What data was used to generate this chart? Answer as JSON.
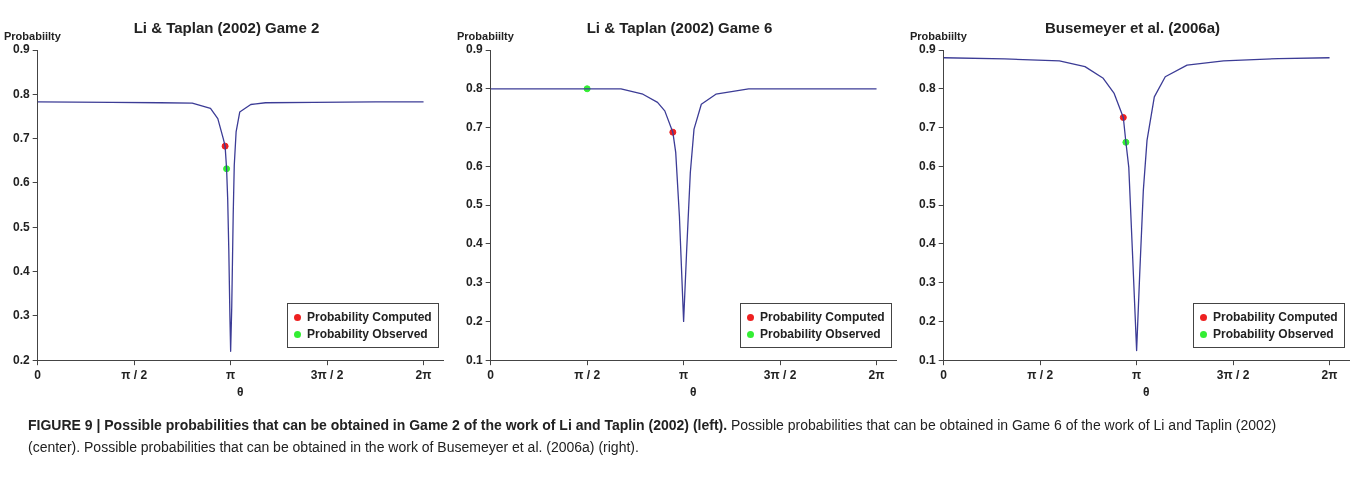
{
  "chart_data": [
    {
      "type": "line",
      "title": "Li & Taplan (2002) Game 2",
      "xlabel": "θ",
      "ylabel": "Probabiilty",
      "xlim": [
        0,
        6.6
      ],
      "ylim": [
        0.2,
        0.9
      ],
      "xticks": [
        {
          "value": 0,
          "label": "0"
        },
        {
          "value": 1.5708,
          "label": "π / 2"
        },
        {
          "value": 3.1416,
          "label": "π"
        },
        {
          "value": 4.7124,
          "label": "3π / 2"
        },
        {
          "value": 6.2832,
          "label": "2π"
        }
      ],
      "yticks": [
        0.2,
        0.3,
        0.4,
        0.5,
        0.6,
        0.7,
        0.8,
        0.9
      ],
      "grid": false,
      "legend": "bottom right",
      "annotations": [
        "FIGURE 9 | Possible probabilities that can be obtained in Game 2 of the work of Li and Taplin (2002) (left).",
        "Possible probabilities that can be obtained in Game 6 of the work of Li and Taplin (2002) (center). Possible probabilities that can be obtained in the work of Busemeyer et al. (2006a) (right)."
      ],
      "series": [
        {
          "type": "line",
          "marker": "none",
          "color": "#3c3c96",
          "x": [
            0,
            1.2,
            2.0,
            2.517,
            2.814,
            2.933,
            3.022,
            3.052,
            3.076,
            3.094,
            3.112,
            3.13,
            3.142,
            3.16,
            3.184,
            3.201,
            3.231,
            3.29,
            3.47,
            3.71,
            4.5,
            5.5,
            6.2832
          ],
          "values": [
            0.783,
            0.782,
            0.781,
            0.78,
            0.768,
            0.745,
            0.7,
            0.683,
            0.632,
            0.564,
            0.45,
            0.3,
            0.22,
            0.32,
            0.53,
            0.64,
            0.715,
            0.76,
            0.777,
            0.781,
            0.782,
            0.783,
            0.783
          ]
        },
        {
          "type": "scatter",
          "marker": "circle",
          "name": "Probability Computed",
          "color": "#ee2020",
          "x": [
            3.052
          ],
          "values": [
            0.683
          ]
        },
        {
          "type": "scatter",
          "marker": "circle",
          "name": "Probability Observed",
          "color": "#33ee33",
          "x": [
            3.076
          ],
          "values": [
            0.632
          ]
        }
      ]
    },
    {
      "type": "line",
      "title": "Li & Taplan (2002) Game 6",
      "xlabel": "θ",
      "ylabel": "Probabiilty",
      "xlim": [
        0,
        6.6
      ],
      "ylim": [
        0.1,
        0.9
      ],
      "xticks": [
        {
          "value": 0,
          "label": "0"
        },
        {
          "value": 1.5708,
          "label": "π / 2"
        },
        {
          "value": 3.1416,
          "label": "π"
        },
        {
          "value": 4.7124,
          "label": "3π / 2"
        },
        {
          "value": 6.2832,
          "label": "2π"
        }
      ],
      "yticks": [
        0.1,
        0.2,
        0.3,
        0.4,
        0.5,
        0.6,
        0.7,
        0.8,
        0.9
      ],
      "grid": false,
      "legend": "bottom right",
      "series": [
        {
          "type": "line",
          "marker": "none",
          "color": "#3c3c96",
          "x": [
            0,
            1.5708,
            2.122,
            2.479,
            2.717,
            2.835,
            2.966,
            3.013,
            3.073,
            3.1416,
            3.192,
            3.251,
            3.311,
            3.43,
            3.667,
            4.2,
            5.2,
            6.2832
          ],
          "values": [
            0.8,
            0.8,
            0.8,
            0.786,
            0.765,
            0.743,
            0.688,
            0.636,
            0.472,
            0.2,
            0.386,
            0.584,
            0.696,
            0.76,
            0.786,
            0.8,
            0.8,
            0.8
          ]
        },
        {
          "type": "scatter",
          "marker": "circle",
          "name": "Probability Computed",
          "color": "#ee2020",
          "x": [
            2.966
          ],
          "values": [
            0.688
          ]
        },
        {
          "type": "scatter",
          "marker": "circle",
          "name": "Probability Observed",
          "color": "#33ee33",
          "x": [
            1.5708
          ],
          "values": [
            0.8
          ]
        }
      ]
    },
    {
      "type": "line",
      "title": "Busemeyer et al. (2006a)",
      "xlabel": "θ",
      "ylabel": "Probabiilty",
      "xlim": [
        0,
        6.6
      ],
      "ylim": [
        0.1,
        0.9
      ],
      "xticks": [
        {
          "value": 0,
          "label": "0"
        },
        {
          "value": 1.5708,
          "label": "π / 2"
        },
        {
          "value": 3.1416,
          "label": "π"
        },
        {
          "value": 4.7124,
          "label": "3π / 2"
        },
        {
          "value": 6.2832,
          "label": "2π"
        }
      ],
      "yticks": [
        0.1,
        0.2,
        0.3,
        0.4,
        0.5,
        0.6,
        0.7,
        0.8,
        0.9
      ],
      "grid": false,
      "legend": "bottom right",
      "series": [
        {
          "type": "line",
          "marker": "none",
          "color": "#3c3c96",
          "x": [
            0,
            0.993,
            1.884,
            2.301,
            2.598,
            2.776,
            2.925,
            2.967,
            3.014,
            3.073,
            3.1416,
            3.192,
            3.251,
            3.311,
            3.43,
            3.608,
            3.963,
            4.557,
            5.45,
            6.2832
          ],
          "values": [
            0.88,
            0.877,
            0.872,
            0.857,
            0.827,
            0.788,
            0.726,
            0.662,
            0.598,
            0.382,
            0.125,
            0.322,
            0.538,
            0.667,
            0.779,
            0.831,
            0.861,
            0.872,
            0.878,
            0.88
          ]
        },
        {
          "type": "scatter",
          "marker": "circle",
          "name": "Probability Computed",
          "color": "#ee2020",
          "x": [
            2.925
          ],
          "values": [
            0.726
          ]
        },
        {
          "type": "scatter",
          "marker": "circle",
          "name": "Probability Observed",
          "color": "#33ee33",
          "x": [
            2.967
          ],
          "values": [
            0.662
          ]
        }
      ]
    }
  ]
}
